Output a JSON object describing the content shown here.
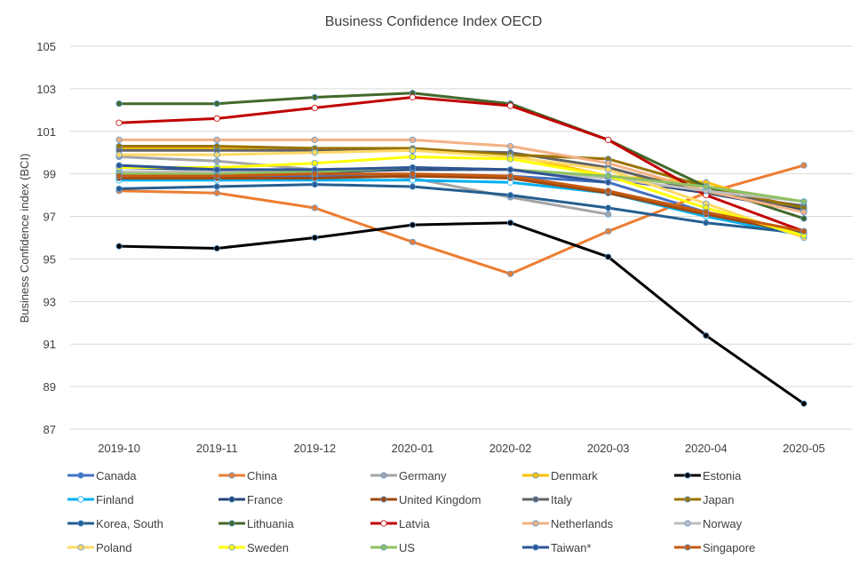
{
  "chart_data": {
    "type": "line",
    "title": "Business Confidence  Index OECD",
    "ylabel": "Business Confidence index (BCI)",
    "xlabel": "",
    "ylim": [
      87,
      105
    ],
    "yticks": [
      87,
      89,
      91,
      93,
      95,
      97,
      99,
      101,
      103,
      105
    ],
    "grid": true,
    "legend_position": "bottom",
    "categories": [
      "2019-10",
      "2019-11",
      "2019-12",
      "2020-01",
      "2020-02",
      "2020-03",
      "2020-04",
      "2020-05"
    ],
    "series": [
      {
        "name": "Canada",
        "color": "#4472C4",
        "marker": "filled",
        "values": [
          98.8,
          98.9,
          98.9,
          98.9,
          98.9,
          98.6,
          97.2,
          96.2
        ]
      },
      {
        "name": "China",
        "color": "#ED7D31",
        "marker": "filled",
        "values": [
          98.2,
          98.1,
          97.4,
          95.8,
          94.3,
          96.3,
          98.1,
          99.4
        ]
      },
      {
        "name": "Germany",
        "color": "#A5A5A5",
        "marker": "filled",
        "values": [
          99.8,
          99.6,
          99.2,
          98.8,
          97.9,
          97.1,
          null,
          null
        ]
      },
      {
        "name": "Denmark",
        "color": "#FFC000",
        "marker": "filled",
        "values": [
          100.2,
          100.2,
          100.2,
          100.1,
          99.9,
          98.9,
          98.6,
          97.2
        ]
      },
      {
        "name": "Estonia",
        "color": "#000000",
        "marker": "filled",
        "values": [
          95.6,
          95.5,
          96.0,
          96.6,
          96.7,
          95.1,
          91.4,
          88.2
        ]
      },
      {
        "name": "Finland",
        "color": "#00B0F0",
        "marker": "open",
        "values": [
          98.7,
          98.7,
          98.7,
          98.7,
          98.6,
          98.1,
          97.0,
          96.1
        ]
      },
      {
        "name": "France",
        "color": "#264478",
        "marker": "filled",
        "values": [
          99.3,
          99.2,
          99.1,
          99.2,
          99.2,
          98.8,
          98.1,
          97.3
        ]
      },
      {
        "name": "United Kingdom",
        "color": "#9E480E",
        "marker": "filled",
        "values": [
          98.8,
          98.8,
          98.8,
          98.9,
          98.8,
          98.1,
          97.1,
          96.2
        ]
      },
      {
        "name": "Italy",
        "color": "#636363",
        "marker": "filled",
        "values": [
          100.1,
          100.1,
          100.1,
          100.1,
          100.0,
          99.3,
          98.1,
          97.5
        ]
      },
      {
        "name": "Japan",
        "color": "#997300",
        "marker": "filled",
        "values": [
          100.3,
          100.3,
          100.2,
          100.2,
          99.9,
          99.7,
          98.4,
          97.4
        ]
      },
      {
        "name": "Korea, South",
        "color": "#255E91",
        "marker": "filled",
        "values": [
          98.3,
          98.4,
          98.5,
          98.4,
          98.0,
          97.4,
          96.7,
          96.2
        ]
      },
      {
        "name": "Lithuania",
        "color": "#43682B",
        "marker": "filled",
        "values": [
          102.3,
          102.3,
          102.6,
          102.8,
          102.3,
          100.6,
          98.4,
          96.9
        ]
      },
      {
        "name": "Latvia",
        "color": "#C00000",
        "marker": "open",
        "values": [
          101.4,
          101.6,
          102.1,
          102.6,
          102.2,
          100.6,
          98.0,
          96.3
        ]
      },
      {
        "name": "Netherlands",
        "color": "#F4B183",
        "marker": "filled",
        "values": [
          100.6,
          100.6,
          100.6,
          100.6,
          100.3,
          99.5,
          98.2,
          97.2
        ]
      },
      {
        "name": "Norway",
        "color": "#BFBFBF",
        "marker": "filled",
        "values": [
          99.1,
          99.1,
          99.2,
          99.3,
          99.2,
          98.8,
          98.2,
          97.7
        ]
      },
      {
        "name": "Poland",
        "color": "#FFD966",
        "marker": "filled",
        "values": [
          99.9,
          99.9,
          100.0,
          100.1,
          99.8,
          99.2,
          97.6,
          96.0
        ]
      },
      {
        "name": "Sweden",
        "color": "#FFFF00",
        "marker": "filled",
        "values": [
          99.3,
          99.3,
          99.5,
          99.8,
          99.7,
          98.9,
          97.4,
          96.1
        ]
      },
      {
        "name": "US",
        "color": "#8FC162",
        "marker": "filled",
        "values": [
          99.0,
          99.0,
          99.1,
          99.3,
          99.2,
          98.9,
          98.4,
          97.7
        ]
      },
      {
        "name": "Taiwan*",
        "color": "#2F5597",
        "marker": "filled",
        "values": [
          99.4,
          99.2,
          99.2,
          99.3,
          99.2,
          98.6,
          null,
          null
        ]
      },
      {
        "name": "Singapore",
        "color": "#C55A11",
        "marker": "filled",
        "values": [
          98.9,
          98.9,
          99.0,
          99.0,
          98.9,
          98.2,
          97.2,
          96.3
        ]
      }
    ]
  }
}
